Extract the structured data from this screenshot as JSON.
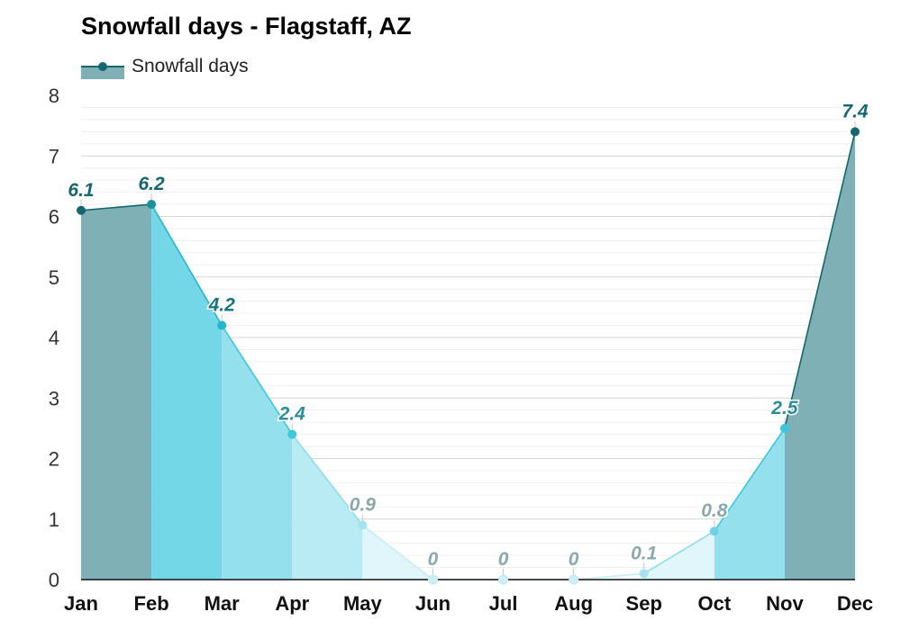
{
  "chart_data": {
    "type": "area",
    "title": "Snowfall days - Flagstaff, AZ",
    "xlabel": "",
    "ylabel": "",
    "categories": [
      "Jan",
      "Feb",
      "Mar",
      "Apr",
      "May",
      "Jun",
      "Jul",
      "Aug",
      "Sep",
      "Oct",
      "Nov",
      "Dec"
    ],
    "series": [
      {
        "name": "Snowfall days",
        "values": [
          6.1,
          6.2,
          4.2,
          2.4,
          0.9,
          0,
          0,
          0,
          0.1,
          0.8,
          2.5,
          7.4
        ]
      }
    ],
    "data_labels": [
      "6.1",
      "6.2",
      "4.2",
      "2.4",
      "0.9",
      "0",
      "0",
      "0",
      "0.1",
      "0.8",
      "2.5",
      "7.4"
    ],
    "ylim": [
      0,
      8
    ],
    "y_ticks": [
      "0",
      "1",
      "2",
      "3",
      "4",
      "5",
      "6",
      "7",
      "8"
    ],
    "grid": true,
    "legend_position": "top-left",
    "colors": {
      "segment_fills": [
        "#7fb0b5",
        "#74d7e7",
        "#94e0ed",
        "#b8ebf3",
        "#e0f6fa",
        "#f2fbfd",
        "#f2fbfd",
        "#f2fbfd",
        "#e0f6fa",
        "#94e0ed",
        "#7fb0b5"
      ],
      "line_colors": [
        "#14676e",
        "#23b8ce",
        "#3ec6da",
        "#8fdce9",
        "#c8edf4",
        "#d5f1f7",
        "#d5f1f7",
        "#c8edf4",
        "#8fdce9",
        "#3ec6da",
        "#14676e"
      ],
      "point_colors": [
        "#14676e",
        "#1a8e99",
        "#23b8ce",
        "#3ec6da",
        "#a5e3ee",
        "#cdeef5",
        "#cdeef5",
        "#cdeef5",
        "#a5e3ee",
        "#6fd2e3",
        "#3ec6da",
        "#14676e"
      ],
      "label_colors": [
        "#14676e",
        "#14676e",
        "#14737d",
        "#2a8e99",
        "#8aa8ac",
        "#8aa8ac",
        "#8aa8ac",
        "#8aa8ac",
        "#8aa8ac",
        "#8aa8ac",
        "#2a8e99",
        "#14676e"
      ]
    }
  }
}
